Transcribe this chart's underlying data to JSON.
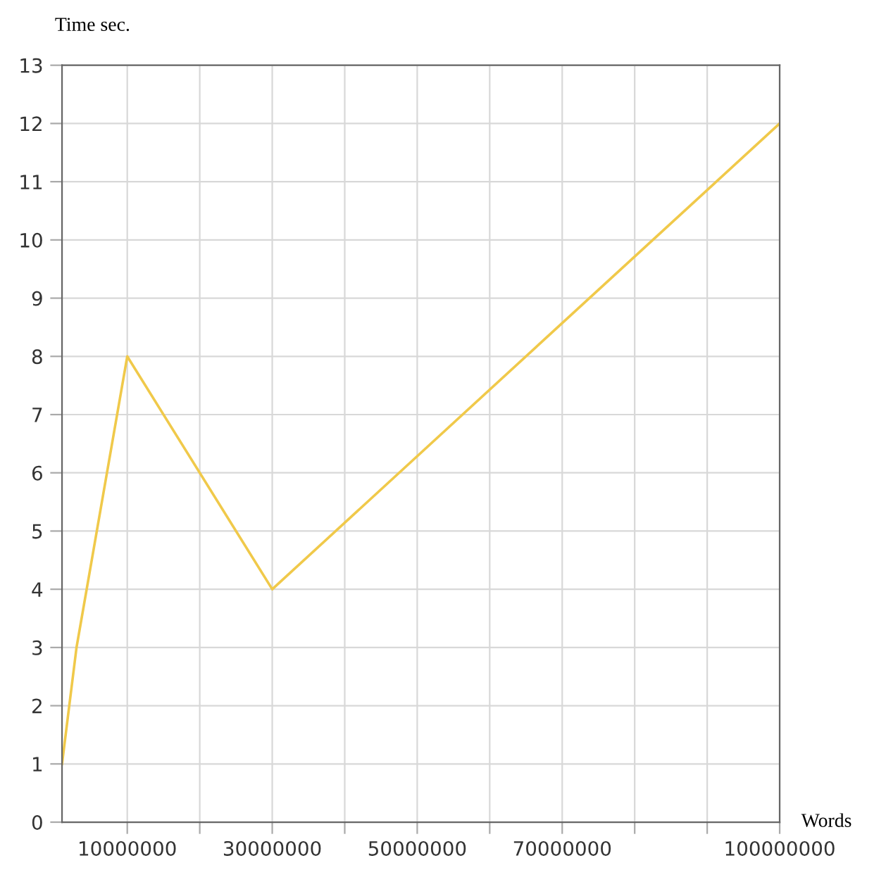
{
  "chart_data": {
    "type": "line",
    "xlabel": "Words",
    "ylabel": "Time sec.",
    "x": [
      1000000,
      3000000,
      10000000,
      30000000,
      100000000
    ],
    "series": [
      {
        "color": "#f0c94a",
        "values": [
          1,
          3,
          8,
          4,
          12
        ]
      }
    ],
    "xlim": [
      1000000,
      100000000
    ],
    "xticks": [
      {
        "value": 10000000,
        "label": "10000000"
      },
      {
        "value": 20000000,
        "label": null
      },
      {
        "value": 30000000,
        "label": "30000000"
      },
      {
        "value": 40000000,
        "label": null
      },
      {
        "value": 50000000,
        "label": "50000000"
      },
      {
        "value": 60000000,
        "label": null
      },
      {
        "value": 70000000,
        "label": "70000000"
      },
      {
        "value": 80000000,
        "label": null
      },
      {
        "value": 90000000,
        "label": null
      },
      {
        "value": 100000000,
        "label": "100000000"
      }
    ],
    "ylim": [
      0,
      13
    ],
    "yticks": [
      0,
      1,
      2,
      3,
      4,
      5,
      6,
      7,
      8,
      9,
      10,
      11,
      12,
      13
    ],
    "grid": true,
    "marker": "none",
    "line_style": "solid"
  }
}
